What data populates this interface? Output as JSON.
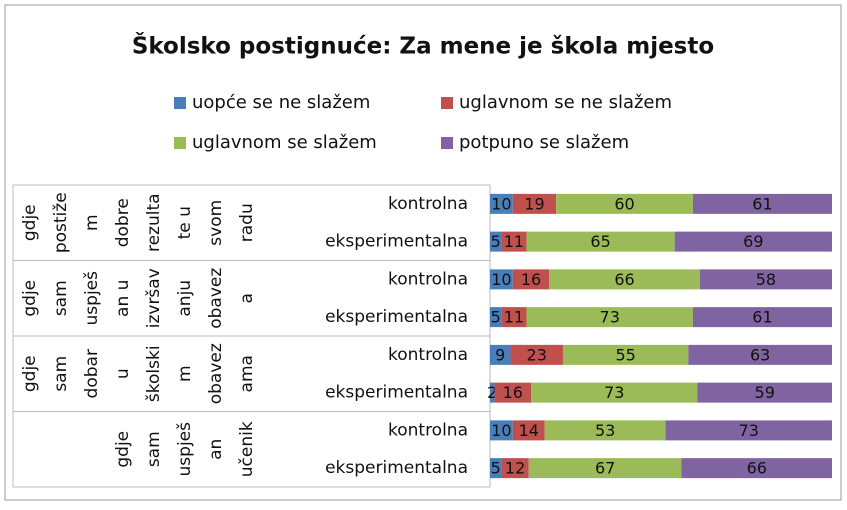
{
  "chart_data": {
    "type": "bar",
    "orientation": "horizontal",
    "stacking": "percent",
    "title": "Školsko postignuće: Za mene je škola mjesto",
    "legend_columns": 2,
    "groups": [
      {
        "lines": [
          "gdje",
          "postiže",
          "m",
          "dobre",
          "rezulta",
          "te u",
          "svom",
          "radu"
        ]
      },
      {
        "lines": [
          "gdje",
          "sam",
          "uspješ",
          "an u",
          "izvršav",
          "anju",
          "obavez",
          "a"
        ]
      },
      {
        "lines": [
          "gdje",
          "sam",
          "dobar",
          "u",
          "školski",
          "m",
          "obavez",
          "ama"
        ]
      },
      {
        "lines": [
          "gdje",
          "sam",
          "uspješ",
          "an",
          "učenik"
        ]
      }
    ],
    "categories": [
      "kontrolna",
      "eksperimentalna",
      "kontrolna",
      "eksperimentalna",
      "kontrolna",
      "eksperimentalna",
      "kontrolna",
      "eksperimentalna"
    ],
    "series": [
      {
        "name": "uopće se ne slažem",
        "color": "#4a7ebb",
        "values": [
          10,
          5,
          10,
          5,
          9,
          2,
          10,
          5
        ]
      },
      {
        "name": "uglavnom se ne slažem",
        "color": "#c0504d",
        "values": [
          19,
          11,
          16,
          11,
          23,
          16,
          14,
          12
        ]
      },
      {
        "name": "uglavnom se slažem",
        "color": "#9bbb59",
        "values": [
          60,
          65,
          66,
          73,
          55,
          73,
          53,
          67
        ]
      },
      {
        "name": "potpuno se slažem",
        "color": "#8064a2",
        "values": [
          61,
          69,
          58,
          61,
          63,
          59,
          73,
          66
        ]
      }
    ]
  }
}
